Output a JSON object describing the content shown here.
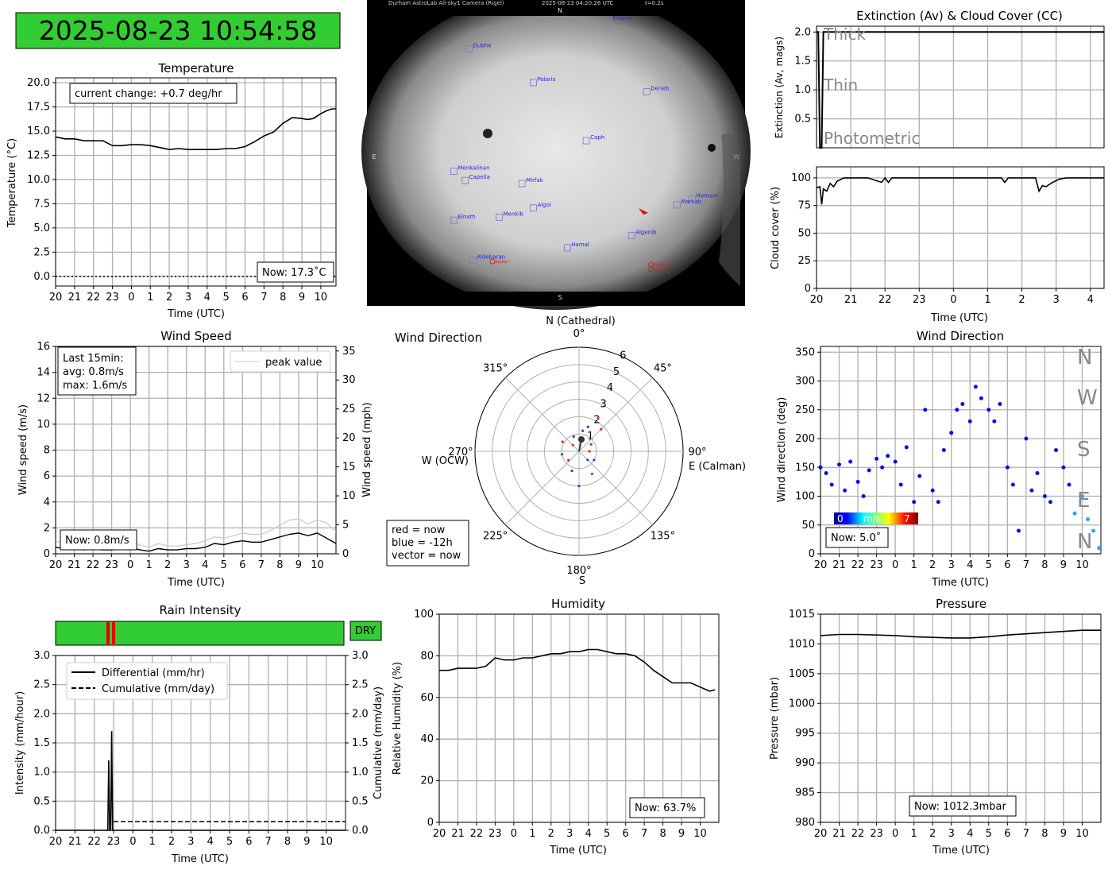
{
  "clock": {
    "text": "2025-08-23 10:54:58",
    "bg": "#32cd32"
  },
  "sky": {
    "header_left": "Durham AstroLab All-sky1 Camera (Rigel)",
    "header_mid": "2025-08-23 04:20:26 UTC",
    "header_right": "t=0.2s",
    "dir_n": "N",
    "dir_s": "S",
    "dir_e": "E",
    "dir_w": "W",
    "stars": [
      {
        "name": "Dubhe",
        "fx": 0.27,
        "fy": 0.16
      },
      {
        "name": "Polaris",
        "fx": 0.44,
        "fy": 0.27
      },
      {
        "name": "Deneb",
        "fx": 0.74,
        "fy": 0.3
      },
      {
        "name": "Caph",
        "fx": 0.58,
        "fy": 0.46
      },
      {
        "name": "Menkalinan",
        "fx": 0.23,
        "fy": 0.56
      },
      {
        "name": "Capella",
        "fx": 0.26,
        "fy": 0.59
      },
      {
        "name": "Mirfak",
        "fx": 0.41,
        "fy": 0.6
      },
      {
        "name": "Algol",
        "fx": 0.44,
        "fy": 0.68
      },
      {
        "name": "Menkib",
        "fx": 0.35,
        "fy": 0.71
      },
      {
        "name": "Elnath",
        "fx": 0.23,
        "fy": 0.72
      },
      {
        "name": "Markab",
        "fx": 0.82,
        "fy": 0.67
      },
      {
        "name": "Homam",
        "fx": 0.86,
        "fy": 0.65
      },
      {
        "name": "Algenib",
        "fx": 0.7,
        "fy": 0.77
      },
      {
        "name": "Hamal",
        "fx": 0.53,
        "fy": 0.81
      },
      {
        "name": "Aldebaran",
        "fx": 0.28,
        "fy": 0.85
      },
      {
        "name": "Eltanin",
        "fx": 0.64,
        "fy": 0.07
      }
    ],
    "planets": [
      {
        "name": "Jupiter",
        "fx": 0.34,
        "fy": 0.855
      },
      {
        "name": "Neptune",
        "fx": 0.76,
        "fy": 0.865
      },
      {
        "name": "Saturn",
        "fx": 0.76,
        "fy": 0.88
      }
    ]
  },
  "temperature": {
    "title": "Temperature",
    "xlabel": "Time (UTC)",
    "ylabel": "Temperature (°C)",
    "change_text": "current change: +0.7 deg/hr",
    "now_text": "Now: 17.3˚C"
  },
  "extinction": {
    "title": "Extinction (Av) & Cloud Cover (CC)",
    "ylabel": "Extinction (Av, mags)",
    "thick": "Thick",
    "thin": "Thin",
    "photometric": "Photometric"
  },
  "cloud": {
    "xlabel": "Time (UTC)",
    "ylabel": "Cloud cover (%)"
  },
  "wind_speed": {
    "title": "Wind Speed",
    "xlabel": "Time (UTC)",
    "ylabel_left": "Wind speed (m/s)",
    "ylabel_right": "Wind speed (mph)",
    "legend": "peak value",
    "stats_1": "Last 15min:",
    "stats_2": "avg: 0.8m/s",
    "stats_3": "max: 1.6m/s",
    "now_text": "Now: 0.8m/s"
  },
  "wind_polar": {
    "title": "Wind Direction",
    "north": "N (Cathedral)",
    "south": "S",
    "east": "E (Calman)",
    "west": "W (OCW)",
    "key_1": "red = now",
    "key_2": "blue = -12h",
    "key_3": "vector = now"
  },
  "wind_dir": {
    "title": "Wind Direction",
    "xlabel": "Time (UTC)",
    "ylabel": "Wind direction (deg)",
    "compass": [
      "N",
      "W",
      "S",
      "E",
      "N"
    ],
    "cbar_min": "0",
    "cbar_mid": "m/s",
    "cbar_max": "7",
    "now_text": "Now: 5.0˚"
  },
  "rain": {
    "title": "Rain Intensity",
    "status": "DRY",
    "status_color": "#32cd32",
    "xlabel": "Time (UTC)",
    "ylabel_left": "Intensity (mm/hour)",
    "ylabel_right": "Cumulative (mm/day)",
    "legend_diff": "Differential (mm/hr)",
    "legend_cum": "Cumulative (mm/day)"
  },
  "humidity": {
    "title": "Humidity",
    "xlabel": "Time (UTC)",
    "ylabel": "Relative Humidity (%)",
    "now_text": "Now: 63.7%"
  },
  "pressure": {
    "title": "Pressure",
    "xlabel": "Time (UTC)",
    "ylabel": "Pressure (mbar)",
    "now_text": "Now: 1012.3mbar"
  },
  "chart_data": [
    {
      "id": "temperature",
      "type": "line",
      "x_ticks": [
        "20",
        "21",
        "22",
        "23",
        "0",
        "1",
        "2",
        "3",
        "4",
        "5",
        "6",
        "7",
        "8",
        "9",
        "10"
      ],
      "xlim": [
        20,
        34.8
      ],
      "ylim": [
        -1,
        20.5
      ],
      "y_ticks": [
        0,
        2.5,
        5,
        7.5,
        10,
        12.5,
        15,
        17.5,
        20
      ],
      "y_tick_labels": [
        "0.0",
        "2.5",
        "5.0",
        "7.5",
        "10.0",
        "12.5",
        "15.0",
        "17.5",
        "20.0"
      ],
      "x": [
        20,
        20.5,
        21,
        21.5,
        22,
        22.5,
        23,
        23.5,
        24,
        24.5,
        25,
        25.5,
        26,
        26.5,
        27,
        27.5,
        28,
        28.5,
        29,
        29.5,
        30,
        30.5,
        31,
        31.5,
        32,
        32.5,
        33,
        33.3,
        33.6,
        34,
        34.3,
        34.6,
        34.8
      ],
      "y": [
        14.4,
        14.2,
        14.2,
        14.0,
        14.0,
        14.0,
        13.5,
        13.5,
        13.6,
        13.6,
        13.5,
        13.3,
        13.1,
        13.2,
        13.1,
        13.1,
        13.1,
        13.1,
        13.2,
        13.2,
        13.4,
        13.9,
        14.5,
        14.9,
        15.8,
        16.4,
        16.3,
        16.2,
        16.3,
        16.8,
        17.1,
        17.3,
        17.3
      ],
      "reference_line": 0
    },
    {
      "id": "extinction",
      "type": "line",
      "xlim": [
        20,
        28.4
      ],
      "ylim": [
        0,
        2.1
      ],
      "y_ticks": [
        0.5,
        1.0,
        1.5,
        2.0
      ],
      "y_tick_labels": [
        "0.5",
        "1.0",
        "1.5",
        "2.0"
      ],
      "x": [
        20,
        20.05,
        20.1,
        20.15,
        20.2,
        20.25,
        20.3,
        28.4
      ],
      "y": [
        2.0,
        2.0,
        0.0,
        0.0,
        2.0,
        2.0,
        2.0,
        2.0
      ]
    },
    {
      "id": "cloud_cover",
      "type": "line",
      "x_ticks": [
        "20",
        "21",
        "22",
        "23",
        "0",
        "1",
        "2",
        "3",
        "4"
      ],
      "xlim": [
        20,
        28.4
      ],
      "ylim": [
        0,
        110
      ],
      "y_ticks": [
        0,
        25,
        50,
        75,
        100
      ],
      "y_tick_labels": [
        "0",
        "25",
        "50",
        "75",
        "100"
      ],
      "x": [
        20,
        20.1,
        20.15,
        20.2,
        20.3,
        20.4,
        20.5,
        20.6,
        20.8,
        21,
        21.5,
        21.9,
        22,
        22.1,
        22.2,
        22.4,
        23,
        24,
        25,
        25.4,
        25.5,
        25.6,
        26,
        26.4,
        26.5,
        26.6,
        26.7,
        26.9,
        27.1,
        27.3,
        27.6,
        28,
        28.4
      ],
      "y": [
        91,
        92,
        76,
        90,
        88,
        95,
        92,
        97,
        100,
        100,
        100,
        96,
        100,
        96,
        100,
        100,
        100,
        100,
        100,
        100,
        96,
        100,
        100,
        100,
        88,
        93,
        92,
        96,
        99,
        100,
        100,
        100,
        100
      ]
    },
    {
      "id": "wind_speed",
      "type": "line",
      "x_ticks": [
        "20",
        "21",
        "22",
        "23",
        "0",
        "1",
        "2",
        "3",
        "4",
        "5",
        "6",
        "7",
        "8",
        "9",
        "10"
      ],
      "xlim": [
        20,
        35
      ],
      "ylim": [
        0,
        16
      ],
      "y_ticks": [
        0,
        2,
        4,
        6,
        8,
        10,
        12,
        14,
        16
      ],
      "y2_ticks": [
        0,
        5,
        10,
        15,
        20,
        25,
        30,
        35
      ],
      "series": [
        {
          "name": "peak value",
          "x": [
            20,
            20.5,
            21,
            21.5,
            22,
            22.5,
            23,
            23.5,
            24,
            24.5,
            25,
            25.5,
            26,
            26.5,
            27,
            27.5,
            28,
            28.5,
            29,
            29.5,
            30,
            30.5,
            31,
            31.5,
            32,
            32.5,
            33,
            33.5,
            34,
            34.5,
            35
          ],
          "y": [
            1.0,
            0.8,
            0.9,
            0.6,
            0.7,
            0.6,
            0.6,
            0.8,
            0.9,
            0.7,
            0.5,
            0.8,
            0.6,
            0.6,
            0.7,
            0.8,
            1.0,
            1.3,
            1.2,
            1.4,
            1.6,
            1.5,
            1.5,
            1.8,
            2.2,
            2.6,
            2.7,
            2.3,
            2.6,
            2.4,
            1.7
          ]
        },
        {
          "x": [
            20,
            20.5,
            21,
            21.5,
            22,
            22.5,
            23,
            23.5,
            24,
            24.5,
            25,
            25.5,
            26,
            26.5,
            27,
            27.5,
            28,
            28.5,
            29,
            29.5,
            30,
            30.5,
            31,
            31.5,
            32,
            32.5,
            33,
            33.5,
            34,
            34.5,
            35
          ],
          "y": [
            0.5,
            0.4,
            0.5,
            0.3,
            0.4,
            0.3,
            0.3,
            0.4,
            0.5,
            0.3,
            0.2,
            0.4,
            0.3,
            0.3,
            0.4,
            0.4,
            0.5,
            0.8,
            0.7,
            0.9,
            1.0,
            0.9,
            0.9,
            1.1,
            1.3,
            1.5,
            1.6,
            1.4,
            1.6,
            1.2,
            0.8
          ]
        }
      ]
    },
    {
      "id": "wind_polar",
      "type": "scatter",
      "r_ticks": [
        1,
        2,
        3,
        4,
        5,
        6
      ],
      "rmax": 6,
      "angle_ticks": [
        "0°",
        "45°",
        "90°",
        "135°",
        "180°",
        "225°",
        "270°",
        "315°"
      ],
      "points": [
        {
          "deg": 20,
          "r": 1.5
        },
        {
          "deg": 30,
          "r": 2.2
        },
        {
          "deg": 10,
          "r": 1.2
        },
        {
          "deg": 60,
          "r": 0.8
        },
        {
          "deg": 120,
          "r": 1.0
        },
        {
          "deg": 150,
          "r": 1.5
        },
        {
          "deg": 200,
          "r": 1.2
        },
        {
          "deg": 230,
          "r": 0.8
        },
        {
          "deg": 260,
          "r": 1.0
        },
        {
          "deg": 300,
          "r": 1.1
        },
        {
          "deg": 340,
          "r": 0.9
        },
        {
          "deg": 90,
          "r": 0.6
        },
        {
          "deg": 180,
          "r": 2.0
        },
        {
          "deg": 45,
          "r": 1.8
        },
        {
          "deg": 135,
          "r": 0.7
        },
        {
          "deg": 315,
          "r": 0.5
        }
      ]
    },
    {
      "id": "wind_direction",
      "type": "scatter",
      "x_ticks": [
        "20",
        "21",
        "22",
        "23",
        "0",
        "1",
        "2",
        "3",
        "4",
        "5",
        "6",
        "7",
        "8",
        "9",
        "10"
      ],
      "xlim": [
        20,
        35
      ],
      "ylim": [
        0,
        360
      ],
      "y_ticks": [
        0,
        50,
        100,
        150,
        200,
        250,
        300,
        350
      ],
      "x": [
        20,
        20.3,
        20.6,
        21,
        21.3,
        21.6,
        22,
        22.3,
        22.6,
        23,
        23.3,
        23.6,
        24,
        24.3,
        24.6,
        25,
        25.3,
        25.6,
        26,
        26.3,
        26.6,
        27,
        27.3,
        27.6,
        28,
        28.3,
        28.6,
        29,
        29.3,
        29.6,
        30,
        30.3,
        30.6,
        31,
        31.3,
        31.6,
        32,
        32.3,
        32.6,
        33,
        33.3,
        33.6,
        34,
        34.3,
        34.6,
        34.9
      ],
      "y": [
        150,
        140,
        120,
        155,
        110,
        160,
        125,
        100,
        145,
        165,
        150,
        170,
        160,
        120,
        185,
        90,
        135,
        250,
        110,
        90,
        180,
        210,
        250,
        260,
        230,
        290,
        270,
        250,
        230,
        260,
        150,
        120,
        40,
        200,
        110,
        140,
        100,
        90,
        180,
        150,
        120,
        70,
        100,
        60,
        40,
        10
      ]
    },
    {
      "id": "rain",
      "type": "line",
      "x_ticks": [
        "20",
        "21",
        "22",
        "23",
        "0",
        "1",
        "2",
        "3",
        "4",
        "5",
        "6",
        "7",
        "8",
        "9",
        "10"
      ],
      "xlim": [
        20,
        35
      ],
      "ylim": [
        0,
        3.0
      ],
      "y_ticks": [
        0,
        0.5,
        1.0,
        1.5,
        2.0,
        2.5,
        3.0
      ],
      "y_tick_labels": [
        "0.0",
        "0.5",
        "1.0",
        "1.5",
        "2.0",
        "2.5",
        "3.0"
      ],
      "series": [
        {
          "name": "Differential (mm/hr)",
          "x": [
            20,
            22.7,
            22.75,
            22.8,
            22.85,
            22.9,
            22.95,
            23.0,
            23.05,
            35
          ],
          "y": [
            0,
            0,
            1.2,
            0,
            0,
            1.7,
            0,
            0,
            0,
            0
          ]
        },
        {
          "name": "Cumulative (mm/day)",
          "x": [
            23.0,
            35
          ],
          "y": [
            0.15,
            0.15
          ]
        }
      ]
    },
    {
      "id": "humidity",
      "type": "line",
      "x_ticks": [
        "20",
        "21",
        "22",
        "23",
        "0",
        "1",
        "2",
        "3",
        "4",
        "5",
        "6",
        "7",
        "8",
        "9",
        "10"
      ],
      "xlim": [
        20,
        35
      ],
      "ylim": [
        0,
        100
      ],
      "y_ticks": [
        0,
        20,
        40,
        60,
        80,
        100
      ],
      "x": [
        20,
        20.5,
        21,
        21.5,
        22,
        22.5,
        23,
        23.5,
        24,
        24.5,
        25,
        25.5,
        26,
        26.5,
        27,
        27.5,
        28,
        28.5,
        29,
        29.5,
        30,
        30.5,
        31,
        31.5,
        32,
        32.5,
        33,
        33.5,
        34,
        34.5,
        34.8
      ],
      "y": [
        73,
        73,
        74,
        74,
        74,
        75,
        79,
        78,
        78,
        79,
        79,
        80,
        81,
        81,
        82,
        82,
        83,
        83,
        82,
        81,
        81,
        80,
        77,
        73,
        70,
        67,
        67,
        67,
        65,
        63,
        63.7
      ]
    },
    {
      "id": "pressure",
      "type": "line",
      "x_ticks": [
        "20",
        "21",
        "22",
        "23",
        "0",
        "1",
        "2",
        "3",
        "4",
        "5",
        "6",
        "7",
        "8",
        "9",
        "10"
      ],
      "xlim": [
        20,
        35
      ],
      "ylim": [
        980,
        1015
      ],
      "y_ticks": [
        980,
        985,
        990,
        995,
        1000,
        1005,
        1010,
        1015
      ],
      "x": [
        20,
        21,
        22,
        23,
        24,
        25,
        26,
        27,
        28,
        29,
        30,
        31,
        32,
        33,
        34,
        35
      ],
      "y": [
        1011.4,
        1011.6,
        1011.6,
        1011.5,
        1011.4,
        1011.2,
        1011.1,
        1011.0,
        1011.0,
        1011.2,
        1011.5,
        1011.7,
        1011.9,
        1012.1,
        1012.3,
        1012.3
      ]
    }
  ]
}
